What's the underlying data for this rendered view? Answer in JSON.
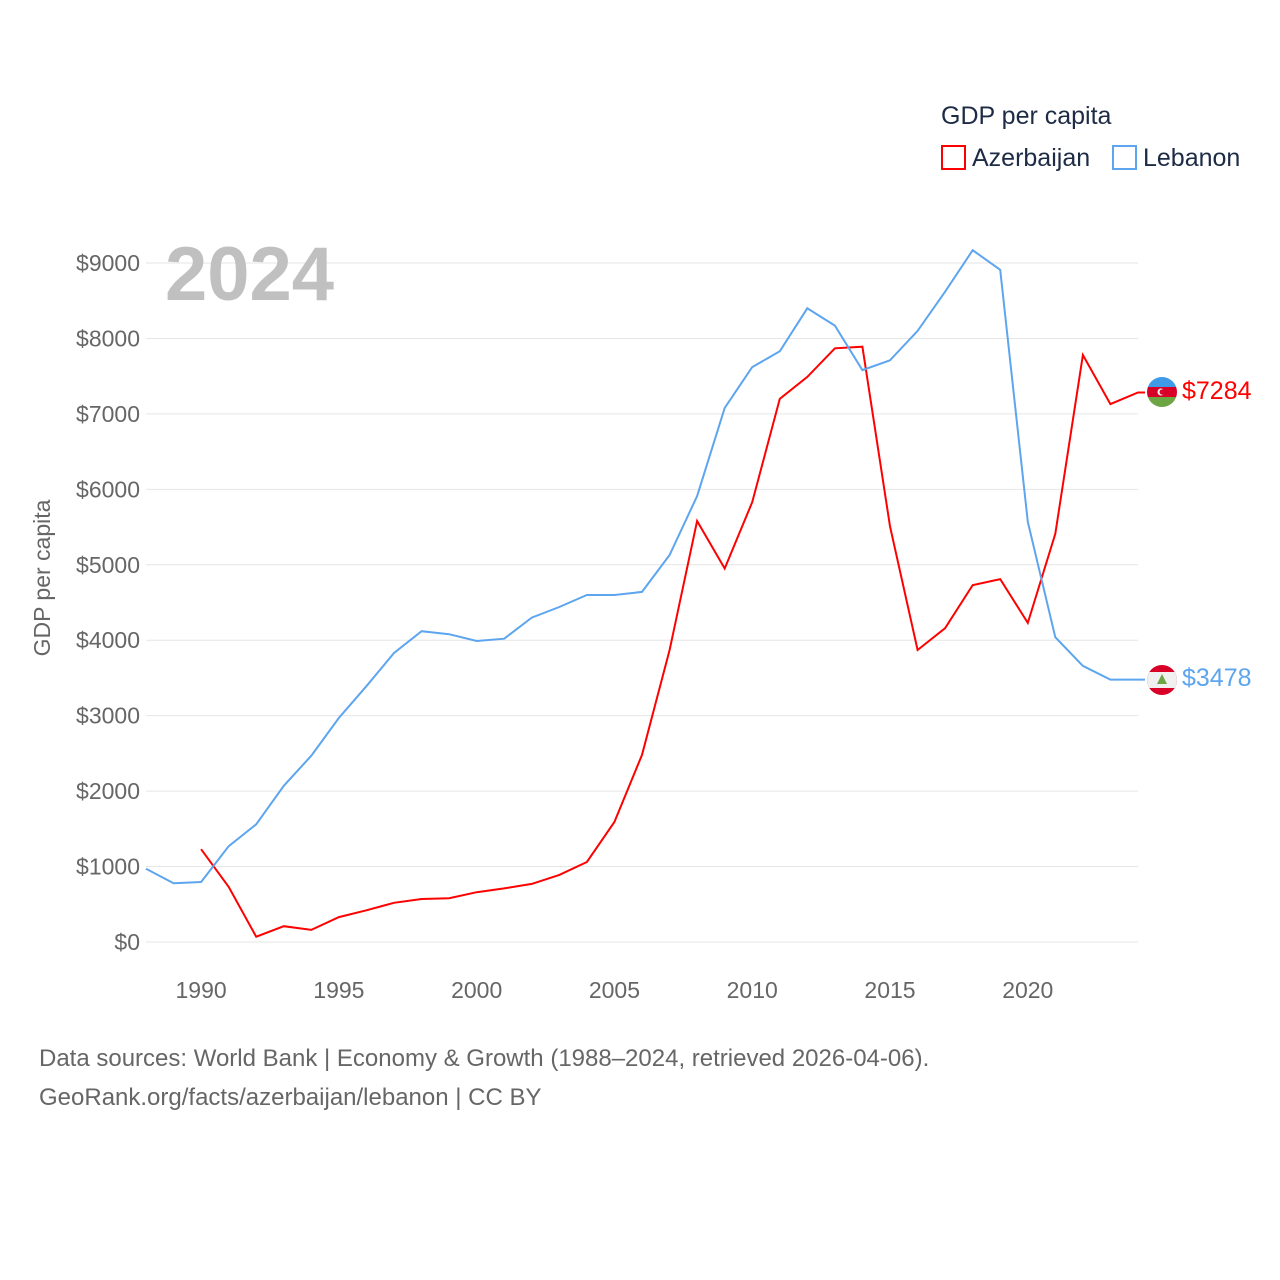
{
  "chart_data": {
    "type": "line",
    "title": "GDP per capita",
    "year_label": "2024",
    "ylabel": "GDP per capita",
    "xlabel": "",
    "xlim": [
      1988,
      2024
    ],
    "ylim": [
      0,
      9000
    ],
    "x_ticks": [
      1990,
      1995,
      2000,
      2005,
      2010,
      2015,
      2020
    ],
    "y_ticks": [
      0,
      1000,
      2000,
      3000,
      4000,
      5000,
      6000,
      7000,
      8000,
      9000
    ],
    "y_tick_labels": [
      "$0",
      "$1000",
      "$2000",
      "$3000",
      "$4000",
      "$5000",
      "$6000",
      "$7000",
      "$8000",
      "$9000"
    ],
    "grid": true,
    "legend_position": "top-right",
    "series": [
      {
        "name": "Azerbaijan",
        "color": "#ff0000",
        "end_label": "$7284",
        "flag": "azerbaijan-flag",
        "x": [
          1990,
          1991,
          1992,
          1993,
          1994,
          1995,
          1996,
          1997,
          1998,
          1999,
          2000,
          2001,
          2002,
          2003,
          2004,
          2005,
          2006,
          2007,
          2008,
          2009,
          2010,
          2011,
          2012,
          2013,
          2014,
          2015,
          2016,
          2017,
          2018,
          2019,
          2020,
          2021,
          2022,
          2023,
          2024
        ],
        "values": [
          1230,
          730,
          70,
          210,
          160,
          330,
          420,
          520,
          570,
          580,
          660,
          710,
          770,
          890,
          1060,
          1590,
          2480,
          3870,
          5580,
          4950,
          5830,
          7200,
          7490,
          7870,
          7890,
          5510,
          3870,
          4160,
          4730,
          4810,
          4230,
          5410,
          7780,
          7130,
          7284
        ]
      },
      {
        "name": "Lebanon",
        "color": "#5da5ee",
        "end_label": "$3478",
        "flag": "lebanon-flag",
        "x": [
          1988,
          1989,
          1990,
          1991,
          1992,
          1993,
          1994,
          1995,
          1996,
          1997,
          1998,
          1999,
          2000,
          2001,
          2002,
          2003,
          2004,
          2005,
          2006,
          2007,
          2008,
          2009,
          2010,
          2011,
          2012,
          2013,
          2014,
          2015,
          2016,
          2017,
          2018,
          2019,
          2020,
          2021,
          2022,
          2023,
          2024
        ],
        "values": [
          970,
          780,
          795,
          1270,
          1560,
          2070,
          2470,
          2970,
          3390,
          3830,
          4120,
          4080,
          3990,
          4020,
          4300,
          4440,
          4600,
          4600,
          4640,
          5130,
          5910,
          7080,
          7620,
          7830,
          8400,
          8170,
          7580,
          7710,
          8100,
          8620,
          9170,
          8910,
          5570,
          4040,
          3660,
          3478,
          3478
        ]
      }
    ]
  },
  "footer": {
    "line1": "Data sources: World Bank | Economy & Growth (1988–2024, retrieved 2026-04-06).",
    "line2": "GeoRank.org/facts/azerbaijan/lebanon | CC BY"
  }
}
